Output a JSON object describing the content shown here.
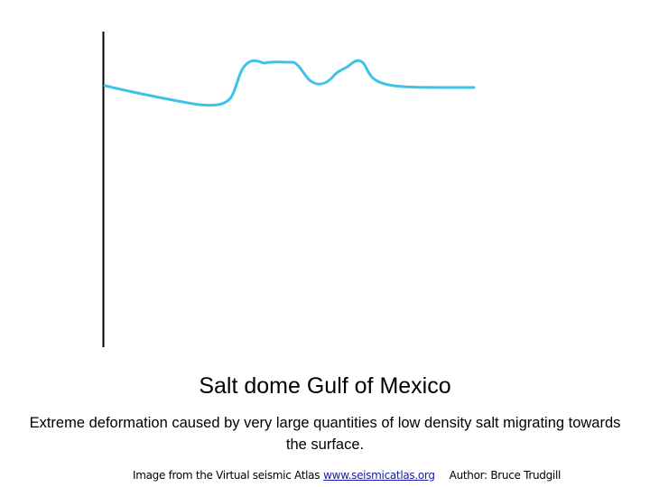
{
  "title": "Salt dome Gulf of Mexico",
  "caption": "Extreme deformation caused by very large quantities of low density salt migrating towards the surface.",
  "credit": {
    "source": "Image from the Virtual seismic Atlas",
    "link": "www.seismicatlas.org",
    "author": "Author: Bruce Trudgill"
  }
}
